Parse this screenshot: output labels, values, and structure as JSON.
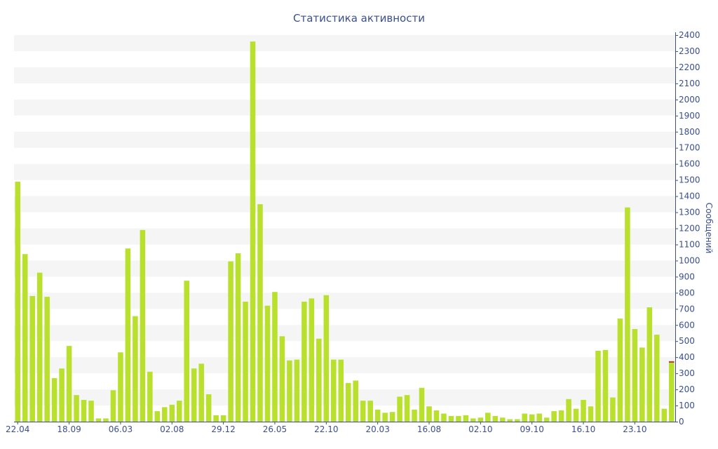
{
  "chart_data": {
    "type": "bar",
    "title": "Статистика активности",
    "ylabel": "Сообщений",
    "xlabel": "",
    "ylim": [
      0,
      2400
    ],
    "y_ticks": [
      0,
      100,
      200,
      300,
      400,
      500,
      600,
      700,
      800,
      900,
      1000,
      1100,
      1200,
      1300,
      1400,
      1500,
      1600,
      1700,
      1800,
      1900,
      2000,
      2100,
      2200,
      2300,
      2400
    ],
    "x_tick_labels": [
      {
        "label": "22.04",
        "index": 0
      },
      {
        "label": "18.09",
        "index": 7
      },
      {
        "label": "06.03",
        "index": 14
      },
      {
        "label": "02.08",
        "index": 21
      },
      {
        "label": "29.12",
        "index": 28
      },
      {
        "label": "26.05",
        "index": 35
      },
      {
        "label": "22.10",
        "index": 42
      },
      {
        "label": "20.03",
        "index": 49
      },
      {
        "label": "16.08",
        "index": 56
      },
      {
        "label": "02.10",
        "index": 63
      },
      {
        "label": "09.10",
        "index": 70
      },
      {
        "label": "16.10",
        "index": 77
      },
      {
        "label": "23.10",
        "index": 84
      }
    ],
    "values": [
      1490,
      1040,
      780,
      925,
      775,
      270,
      330,
      470,
      165,
      135,
      130,
      20,
      20,
      195,
      430,
      1075,
      655,
      1190,
      310,
      65,
      90,
      105,
      130,
      875,
      330,
      360,
      170,
      40,
      40,
      995,
      1045,
      745,
      2360,
      1350,
      720,
      805,
      530,
      380,
      385,
      745,
      765,
      515,
      785,
      385,
      385,
      240,
      255,
      130,
      130,
      75,
      55,
      60,
      155,
      165,
      75,
      210,
      95,
      70,
      50,
      35,
      35,
      40,
      20,
      25,
      55,
      35,
      25,
      15,
      15,
      50,
      45,
      50,
      25,
      65,
      70,
      140,
      80,
      135,
      95,
      440,
      445,
      150,
      640,
      1330,
      575,
      460,
      710,
      540,
      80,
      375
    ],
    "series_color": "#b8e02c",
    "last_bar_marker_color": "#c0392b",
    "grid": "horizontal-bands",
    "band_color": "#f5f5f5",
    "axis_color": "#3a4f8f"
  }
}
